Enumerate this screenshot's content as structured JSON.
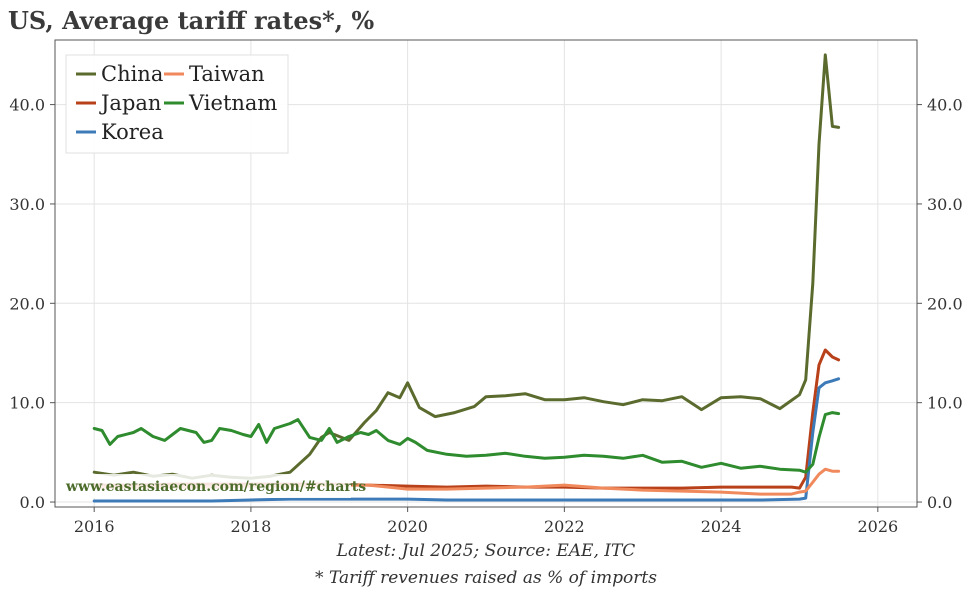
{
  "title": "US, Average tariff rates*, %",
  "watermark": "www.eastasiaecon.com/region/#charts",
  "footnote_source": "Latest: Jul 2025; Source: EAE, ITC",
  "footnote_definition": "* Tariff revenues raised as % of imports",
  "chart_data": {
    "type": "line",
    "title": "US, Average tariff rates*, %",
    "xlabel": "",
    "ylabel": "",
    "xlim": [
      2015.5,
      2026.5
    ],
    "ylim": [
      -0.5,
      46.5
    ],
    "x_ticks": [
      2016,
      2018,
      2020,
      2022,
      2024,
      2026
    ],
    "x_tick_labels": [
      "2016",
      "2018",
      "2020",
      "2022",
      "2024",
      "2026"
    ],
    "y_ticks": [
      0,
      10,
      20,
      30,
      40
    ],
    "y_tick_labels": [
      "0.0",
      "10.0",
      "20.0",
      "30.0",
      "40.0"
    ],
    "y_axis_sides": [
      "left",
      "right"
    ],
    "grid": true,
    "legend_position": "top-left",
    "series": [
      {
        "name": "China",
        "color": "#5b6b2e",
        "points": [
          [
            2016.0,
            3.0
          ],
          [
            2016.25,
            2.7
          ],
          [
            2016.5,
            3.0
          ],
          [
            2016.75,
            2.6
          ],
          [
            2017.0,
            2.8
          ],
          [
            2017.25,
            2.4
          ],
          [
            2017.5,
            2.7
          ],
          [
            2017.75,
            2.5
          ],
          [
            2018.0,
            2.4
          ],
          [
            2018.25,
            2.6
          ],
          [
            2018.5,
            3.0
          ],
          [
            2018.75,
            4.8
          ],
          [
            2018.9,
            6.5
          ],
          [
            2019.0,
            7.0
          ],
          [
            2019.25,
            6.2
          ],
          [
            2019.45,
            8.0
          ],
          [
            2019.6,
            9.2
          ],
          [
            2019.75,
            11.0
          ],
          [
            2019.9,
            10.5
          ],
          [
            2020.0,
            12.0
          ],
          [
            2020.15,
            9.5
          ],
          [
            2020.35,
            8.6
          ],
          [
            2020.6,
            9.0
          ],
          [
            2020.85,
            9.6
          ],
          [
            2021.0,
            10.6
          ],
          [
            2021.25,
            10.7
          ],
          [
            2021.5,
            10.9
          ],
          [
            2021.75,
            10.3
          ],
          [
            2022.0,
            10.3
          ],
          [
            2022.25,
            10.5
          ],
          [
            2022.5,
            10.1
          ],
          [
            2022.75,
            9.8
          ],
          [
            2023.0,
            10.3
          ],
          [
            2023.25,
            10.2
          ],
          [
            2023.5,
            10.6
          ],
          [
            2023.75,
            9.3
          ],
          [
            2024.0,
            10.5
          ],
          [
            2024.25,
            10.6
          ],
          [
            2024.5,
            10.4
          ],
          [
            2024.75,
            9.4
          ],
          [
            2025.0,
            10.8
          ],
          [
            2025.08,
            12.3
          ],
          [
            2025.17,
            22.0
          ],
          [
            2025.25,
            36.0
          ],
          [
            2025.33,
            45.0
          ],
          [
            2025.42,
            37.8
          ],
          [
            2025.5,
            37.7
          ]
        ]
      },
      {
        "name": "Japan",
        "color": "#b8411a",
        "points": [
          [
            2016.0,
            1.7
          ],
          [
            2016.5,
            1.7
          ],
          [
            2017.0,
            1.8
          ],
          [
            2017.5,
            1.8
          ],
          [
            2018.0,
            1.8
          ],
          [
            2018.5,
            1.8
          ],
          [
            2019.0,
            1.8
          ],
          [
            2019.5,
            1.7
          ],
          [
            2020.0,
            1.6
          ],
          [
            2020.5,
            1.5
          ],
          [
            2021.0,
            1.6
          ],
          [
            2021.5,
            1.5
          ],
          [
            2022.0,
            1.5
          ],
          [
            2022.5,
            1.4
          ],
          [
            2023.0,
            1.4
          ],
          [
            2023.5,
            1.4
          ],
          [
            2024.0,
            1.5
          ],
          [
            2024.5,
            1.5
          ],
          [
            2024.9,
            1.5
          ],
          [
            2025.0,
            1.4
          ],
          [
            2025.08,
            2.5
          ],
          [
            2025.17,
            9.0
          ],
          [
            2025.25,
            13.8
          ],
          [
            2025.33,
            15.3
          ],
          [
            2025.42,
            14.6
          ],
          [
            2025.5,
            14.3
          ]
        ]
      },
      {
        "name": "Korea",
        "color": "#3d7ab8",
        "points": [
          [
            2016.0,
            0.1
          ],
          [
            2016.5,
            0.1
          ],
          [
            2017.0,
            0.1
          ],
          [
            2017.5,
            0.1
          ],
          [
            2018.0,
            0.2
          ],
          [
            2018.5,
            0.3
          ],
          [
            2019.0,
            0.3
          ],
          [
            2019.5,
            0.3
          ],
          [
            2020.0,
            0.3
          ],
          [
            2020.5,
            0.2
          ],
          [
            2021.0,
            0.2
          ],
          [
            2021.5,
            0.2
          ],
          [
            2022.0,
            0.2
          ],
          [
            2022.5,
            0.2
          ],
          [
            2023.0,
            0.2
          ],
          [
            2023.5,
            0.2
          ],
          [
            2024.0,
            0.2
          ],
          [
            2024.5,
            0.2
          ],
          [
            2025.0,
            0.3
          ],
          [
            2025.08,
            0.4
          ],
          [
            2025.17,
            7.0
          ],
          [
            2025.25,
            11.5
          ],
          [
            2025.33,
            12.0
          ],
          [
            2025.42,
            12.2
          ],
          [
            2025.5,
            12.4
          ]
        ]
      },
      {
        "name": "Taiwan",
        "color": "#f08a5d",
        "points": [
          [
            2016.0,
            1.5
          ],
          [
            2016.5,
            1.5
          ],
          [
            2017.0,
            1.5
          ],
          [
            2017.5,
            1.5
          ],
          [
            2018.0,
            1.6
          ],
          [
            2018.5,
            1.6
          ],
          [
            2019.0,
            1.7
          ],
          [
            2019.5,
            1.7
          ],
          [
            2020.0,
            1.3
          ],
          [
            2020.5,
            1.3
          ],
          [
            2021.0,
            1.4
          ],
          [
            2021.5,
            1.5
          ],
          [
            2022.0,
            1.7
          ],
          [
            2022.5,
            1.4
          ],
          [
            2023.0,
            1.2
          ],
          [
            2023.5,
            1.1
          ],
          [
            2024.0,
            1.0
          ],
          [
            2024.5,
            0.8
          ],
          [
            2024.9,
            0.8
          ],
          [
            2025.0,
            1.0
          ],
          [
            2025.08,
            1.1
          ],
          [
            2025.17,
            2.0
          ],
          [
            2025.25,
            2.8
          ],
          [
            2025.33,
            3.3
          ],
          [
            2025.42,
            3.1
          ],
          [
            2025.5,
            3.1
          ]
        ]
      },
      {
        "name": "Vietnam",
        "color": "#2e8b2e",
        "points": [
          [
            2016.0,
            7.4
          ],
          [
            2016.1,
            7.2
          ],
          [
            2016.2,
            5.8
          ],
          [
            2016.3,
            6.6
          ],
          [
            2016.5,
            7.0
          ],
          [
            2016.6,
            7.4
          ],
          [
            2016.75,
            6.6
          ],
          [
            2016.9,
            6.2
          ],
          [
            2017.0,
            6.8
          ],
          [
            2017.1,
            7.4
          ],
          [
            2017.3,
            7.0
          ],
          [
            2017.4,
            6.0
          ],
          [
            2017.5,
            6.2
          ],
          [
            2017.6,
            7.4
          ],
          [
            2017.75,
            7.2
          ],
          [
            2017.9,
            6.8
          ],
          [
            2018.0,
            6.6
          ],
          [
            2018.1,
            7.8
          ],
          [
            2018.2,
            6.0
          ],
          [
            2018.3,
            7.4
          ],
          [
            2018.5,
            7.9
          ],
          [
            2018.6,
            8.3
          ],
          [
            2018.75,
            6.5
          ],
          [
            2018.9,
            6.2
          ],
          [
            2019.0,
            7.4
          ],
          [
            2019.1,
            6.0
          ],
          [
            2019.25,
            6.6
          ],
          [
            2019.4,
            7.0
          ],
          [
            2019.5,
            6.8
          ],
          [
            2019.6,
            7.2
          ],
          [
            2019.75,
            6.2
          ],
          [
            2019.9,
            5.8
          ],
          [
            2020.0,
            6.4
          ],
          [
            2020.1,
            6.0
          ],
          [
            2020.25,
            5.2
          ],
          [
            2020.5,
            4.8
          ],
          [
            2020.75,
            4.6
          ],
          [
            2021.0,
            4.7
          ],
          [
            2021.25,
            4.9
          ],
          [
            2021.5,
            4.6
          ],
          [
            2021.75,
            4.4
          ],
          [
            2022.0,
            4.5
          ],
          [
            2022.25,
            4.7
          ],
          [
            2022.5,
            4.6
          ],
          [
            2022.75,
            4.4
          ],
          [
            2023.0,
            4.7
          ],
          [
            2023.25,
            4.0
          ],
          [
            2023.5,
            4.1
          ],
          [
            2023.75,
            3.5
          ],
          [
            2024.0,
            3.9
          ],
          [
            2024.25,
            3.4
          ],
          [
            2024.5,
            3.6
          ],
          [
            2024.75,
            3.3
          ],
          [
            2025.0,
            3.2
          ],
          [
            2025.08,
            3.0
          ],
          [
            2025.17,
            3.8
          ],
          [
            2025.25,
            6.5
          ],
          [
            2025.33,
            8.8
          ],
          [
            2025.42,
            9.0
          ],
          [
            2025.5,
            8.9
          ]
        ]
      }
    ]
  }
}
